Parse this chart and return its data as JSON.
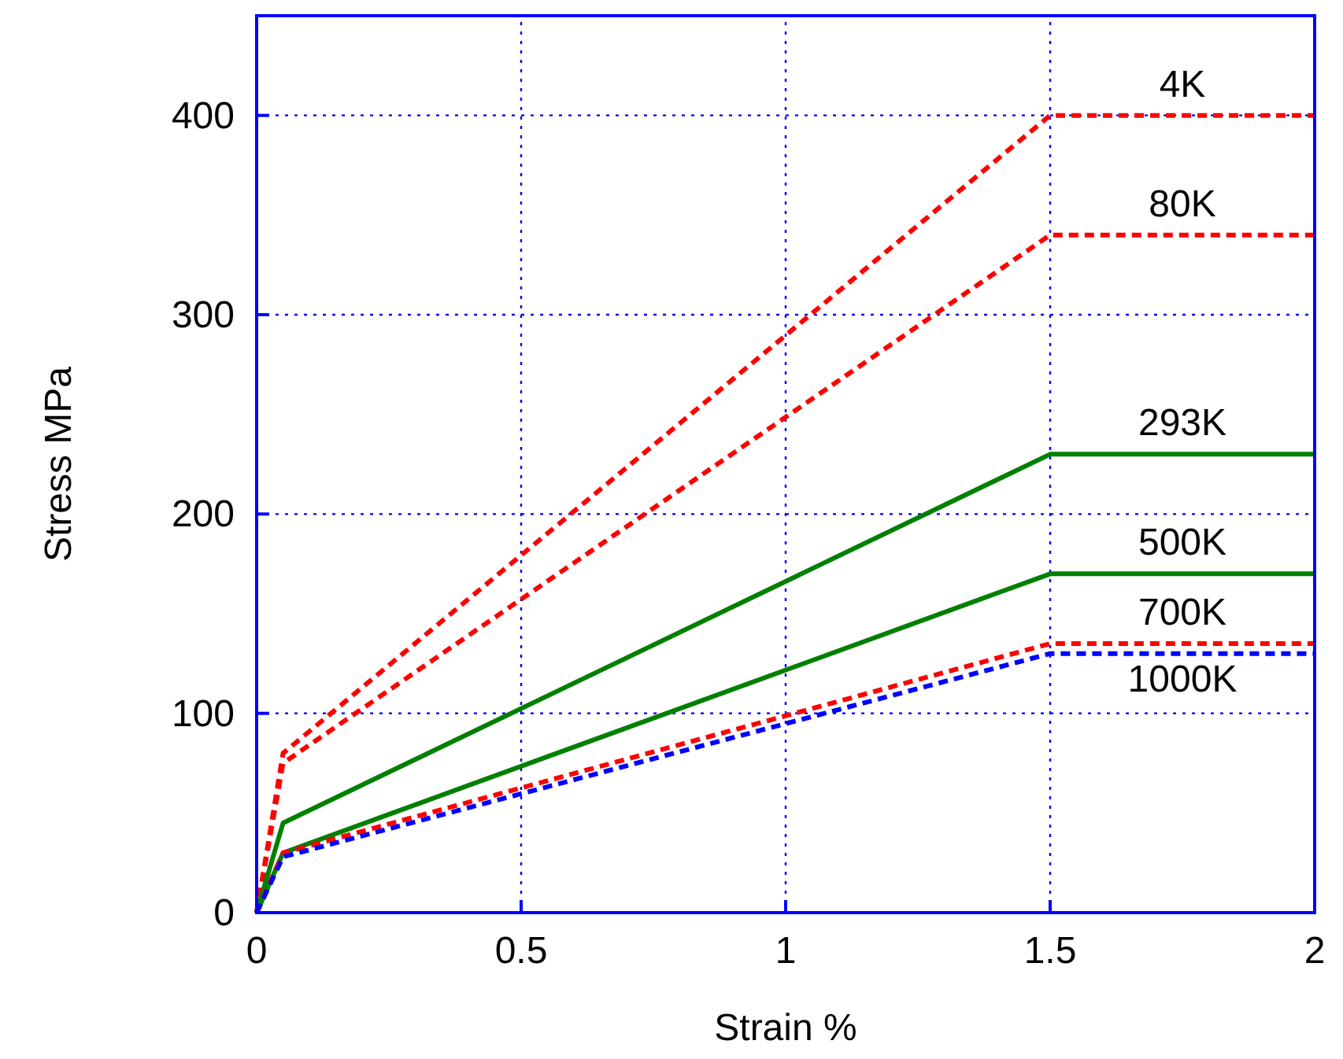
{
  "chart_data": {
    "type": "line",
    "xlabel": "Strain %",
    "ylabel": "Stress MPa",
    "xlim": [
      0,
      2
    ],
    "ylim": [
      0,
      450
    ],
    "xticks": [
      0,
      0.5,
      1,
      1.5,
      2
    ],
    "yticks": [
      0,
      100,
      200,
      300,
      400
    ],
    "grid": true,
    "marker": "none",
    "x": [
      0,
      0.05,
      1.5,
      2
    ],
    "series": [
      {
        "name": "4K",
        "color": "#ff0000",
        "line_style": "dashed",
        "values": [
          0,
          80,
          400,
          400
        ]
      },
      {
        "name": "80K",
        "color": "#ff0000",
        "line_style": "dashed",
        "values": [
          0,
          75,
          340,
          340
        ]
      },
      {
        "name": "293K",
        "color": "#008000",
        "line_style": "solid",
        "values": [
          0,
          45,
          230,
          230
        ]
      },
      {
        "name": "500K",
        "color": "#008000",
        "line_style": "solid",
        "values": [
          0,
          30,
          170,
          170
        ]
      },
      {
        "name": "700K",
        "color": "#ff0000",
        "line_style": "dashed",
        "values": [
          0,
          30,
          135,
          135
        ]
      },
      {
        "name": "1000K",
        "color": "#0000ff",
        "line_style": "dashed",
        "values": [
          0,
          28,
          130,
          130
        ]
      }
    ]
  }
}
